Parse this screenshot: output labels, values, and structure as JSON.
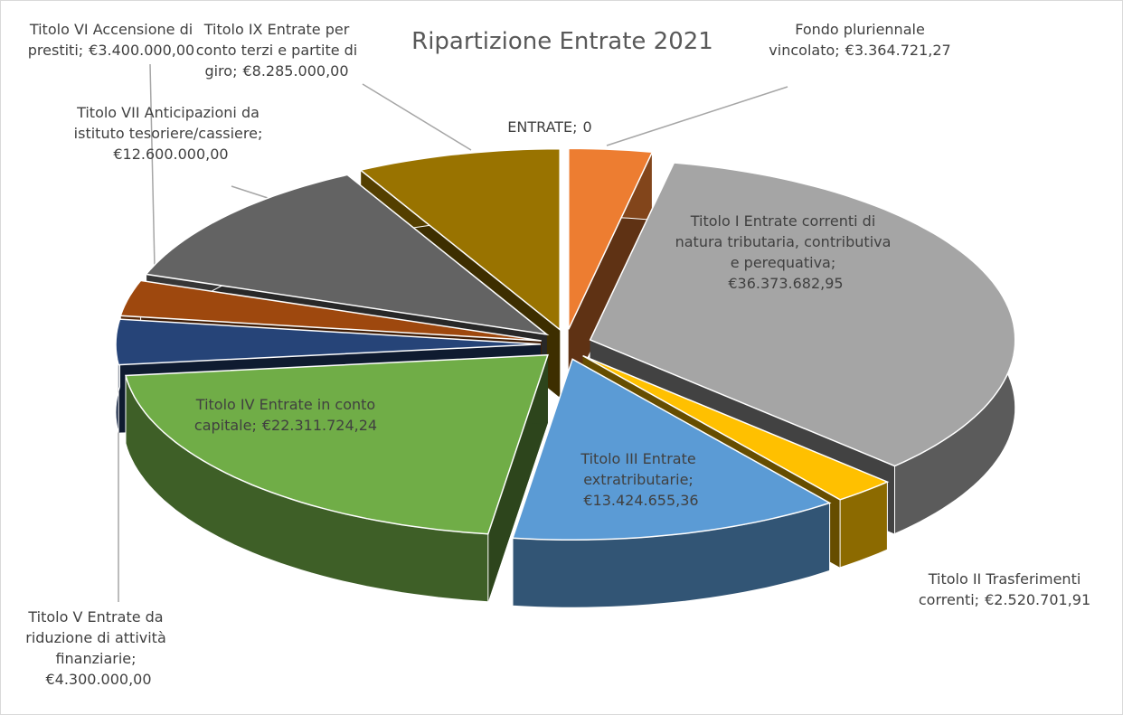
{
  "chart_data": {
    "type": "pie3d",
    "title": "Ripartizione Entrate 2021",
    "categories": [
      "ENTRATE;",
      "Fondo pluriennale vincolato;",
      "Titolo I Entrate correnti di natura tributaria, contributiva e perequativa;",
      "Titolo II Trasferimenti correnti;",
      "Titolo III Entrate extratributarie;",
      "Titolo IV Entrate in conto capitale;",
      "Titolo V Entrate da riduzione di attività finanziarie;",
      "Titolo VI Accensione di prestiti;",
      "Titolo VII Anticipazioni da istituto tesoriere/cassiere;",
      "Titolo IX Entrate per conto terzi e partite di giro;"
    ],
    "values": [
      0,
      3364721.27,
      36373682.95,
      2520701.91,
      13424655.36,
      22311724.24,
      4300000,
      3400000,
      12600000,
      8285000
    ],
    "value_labels": [
      "0",
      "€3.364.721,27",
      "€36.373.682,95",
      "€2.520.701,91",
      "€13.424.655,36",
      "€22.311.724,24",
      "€4.300.000,00",
      "€3.400.000,00",
      "€12.600.000,00",
      "€8.285.000,00"
    ],
    "colors": [
      "#4472c4",
      "#ed7d31",
      "#a5a5a5",
      "#ffc000",
      "#5b9bd5",
      "#70ad47",
      "#264478",
      "#9e480e",
      "#636363",
      "#997300"
    ]
  }
}
